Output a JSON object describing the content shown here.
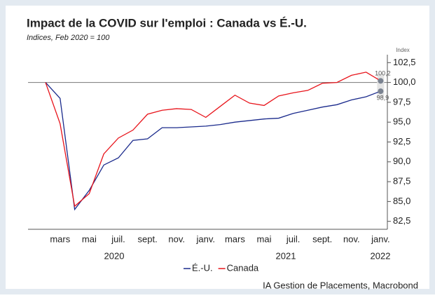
{
  "chart_data": {
    "type": "line",
    "title": "Impact de la COVID sur l'emploi : Canada vs É.-U.",
    "subtitle": "Indices, Feb 2020 = 100",
    "y_axis_label": "Index",
    "source": "IA Gestion de Placements, Macrobond",
    "categories": [
      null,
      "mars",
      null,
      "mai",
      null,
      "juil.",
      null,
      "sept.",
      null,
      "nov.",
      null,
      "janv.",
      null,
      "mars",
      null,
      "mai",
      null,
      "juil.",
      null,
      "sept.",
      null,
      "nov.",
      null,
      "janv."
    ],
    "year_labels": [
      "2020",
      "2021",
      "2022"
    ],
    "series": [
      {
        "name": "É.-U.",
        "color": "#1a2a8c",
        "values": [
          100,
          98.0,
          84.0,
          86.4,
          89.6,
          90.5,
          92.7,
          92.9,
          94.3,
          94.3,
          94.4,
          94.5,
          94.7,
          95.0,
          95.2,
          95.4,
          95.5,
          96.1,
          96.5,
          96.9,
          97.2,
          97.8,
          98.2,
          98.9
        ]
      },
      {
        "name": "Canada",
        "color": "#e8141b",
        "values": [
          100,
          94.8,
          84.4,
          86.0,
          91.0,
          93.0,
          94.0,
          96.0,
          96.5,
          96.7,
          96.6,
          95.6,
          97.0,
          98.4,
          97.4,
          97.1,
          98.3,
          98.7,
          99.0,
          99.9,
          100.0,
          100.9,
          101.3,
          100.2
        ]
      }
    ],
    "annotations": [
      "98,9",
      "100,2"
    ],
    "ylim": [
      81.5,
      103.5
    ],
    "yticks": [
      {
        "value": 82.5,
        "label": "82,5"
      },
      {
        "value": 85,
        "label": "85,0"
      },
      {
        "value": 87.5,
        "label": "87,5"
      },
      {
        "value": 90,
        "label": "90,0"
      },
      {
        "value": 92.5,
        "label": "92,5"
      },
      {
        "value": 95,
        "label": "95,0"
      },
      {
        "value": 97.5,
        "label": "97,5"
      },
      {
        "value": 100,
        "label": "100,0"
      },
      {
        "value": 102.5,
        "label": "102,5"
      }
    ],
    "reference_line": 100,
    "legend": "bottom"
  }
}
